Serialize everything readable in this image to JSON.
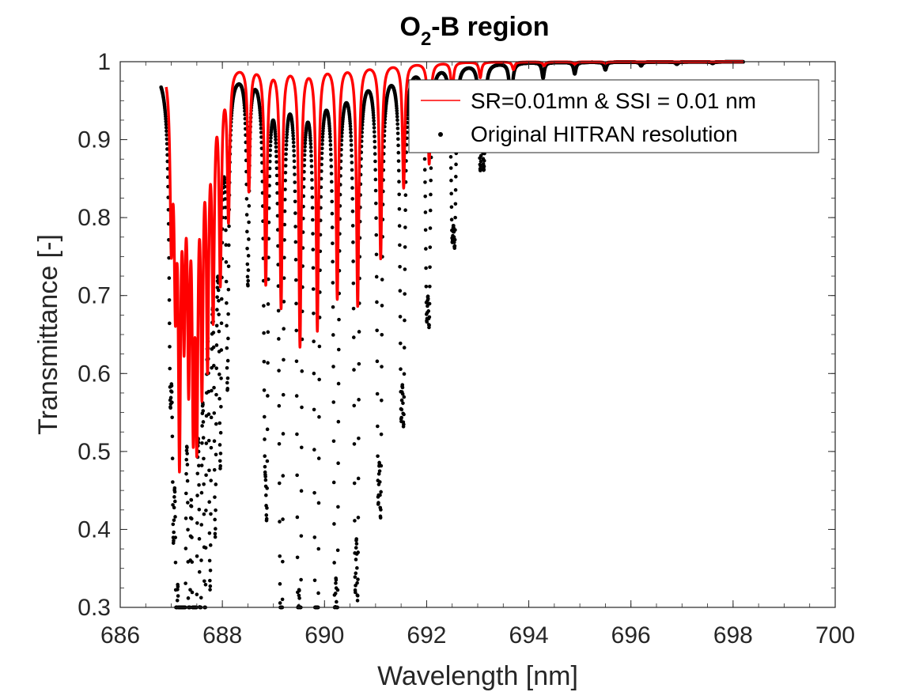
{
  "chart_data": {
    "type": "line",
    "title": "O2-B region",
    "title_parts": {
      "main": "O",
      "subscript": "2",
      "rest": "-B region"
    },
    "xlabel": "Wavelength [nm]",
    "ylabel": "Transmittance [-]",
    "xlim": [
      686,
      700
    ],
    "ylim": [
      0.3,
      1
    ],
    "x_ticks": [
      "686",
      "688",
      "690",
      "692",
      "694",
      "696",
      "698",
      "700"
    ],
    "y_ticks": [
      "0.3",
      "0.4",
      "0.5",
      "0.6",
      "0.7",
      "0.8",
      "0.9",
      "1"
    ],
    "grid": false,
    "legend_position": "top-right",
    "series": [
      {
        "name": "SR=0.01mn & SSI = 0.01 nm",
        "style": "line",
        "color": "#ff0000",
        "x_range": [
          686.9,
          698.2
        ],
        "absorption_lines": [
          [
            687.0,
            0.8
          ],
          [
            687.08,
            0.75
          ],
          [
            687.16,
            0.55
          ],
          [
            687.25,
            0.72
          ],
          [
            687.34,
            0.66
          ],
          [
            687.43,
            0.62
          ],
          [
            687.5,
            0.6
          ],
          [
            687.6,
            0.64
          ],
          [
            687.71,
            0.66
          ],
          [
            687.82,
            0.71
          ],
          [
            687.96,
            0.74
          ],
          [
            688.12,
            0.81
          ],
          [
            688.52,
            0.84
          ],
          [
            688.85,
            0.72
          ],
          [
            689.15,
            0.69
          ],
          [
            689.52,
            0.64
          ],
          [
            689.86,
            0.66
          ],
          [
            690.25,
            0.7
          ],
          [
            690.65,
            0.69
          ],
          [
            691.1,
            0.75
          ],
          [
            691.55,
            0.84
          ],
          [
            692.05,
            0.87
          ],
          [
            692.5,
            0.96
          ],
          [
            693.05,
            0.98
          ],
          [
            693.7,
            0.99
          ],
          [
            694.3,
            0.995
          ],
          [
            694.9,
            0.997
          ],
          [
            695.5,
            0.998
          ]
        ]
      },
      {
        "name": "Original HITRAN resolution",
        "style": "markers",
        "color": "#000000",
        "x_range": [
          686.8,
          698.2
        ],
        "absorption_lines": [
          [
            686.98,
            0.7
          ],
          [
            687.04,
            0.6
          ],
          [
            687.1,
            0.5
          ],
          [
            687.16,
            0.42
          ],
          [
            687.2,
            0.48
          ],
          [
            687.26,
            0.37
          ],
          [
            687.35,
            0.34
          ],
          [
            687.43,
            0.39
          ],
          [
            687.48,
            0.34
          ],
          [
            687.57,
            0.37
          ],
          [
            687.66,
            0.39
          ],
          [
            687.76,
            0.45
          ],
          [
            687.86,
            0.5
          ],
          [
            687.96,
            0.56
          ],
          [
            688.1,
            0.62
          ],
          [
            688.5,
            0.73
          ],
          [
            688.83,
            0.66
          ],
          [
            688.87,
            0.55
          ],
          [
            689.13,
            0.52
          ],
          [
            689.17,
            0.43
          ],
          [
            689.48,
            0.44
          ],
          [
            689.53,
            0.38
          ],
          [
            689.82,
            0.4
          ],
          [
            689.87,
            0.375
          ],
          [
            690.2,
            0.44
          ],
          [
            690.25,
            0.4
          ],
          [
            690.6,
            0.47
          ],
          [
            690.65,
            0.455
          ],
          [
            691.05,
            0.56
          ],
          [
            691.1,
            0.535
          ],
          [
            691.5,
            0.64
          ],
          [
            691.55,
            0.63
          ],
          [
            692.0,
            0.74
          ],
          [
            692.05,
            0.73
          ],
          [
            692.5,
            0.82
          ],
          [
            692.55,
            0.81
          ],
          [
            693.05,
            0.88
          ],
          [
            693.12,
            0.88
          ],
          [
            693.65,
            0.93
          ],
          [
            694.28,
            0.98
          ],
          [
            694.9,
            0.985
          ],
          [
            695.5,
            0.99
          ],
          [
            696.2,
            0.995
          ],
          [
            696.9,
            0.997
          ],
          [
            697.6,
            0.998
          ]
        ]
      }
    ]
  }
}
